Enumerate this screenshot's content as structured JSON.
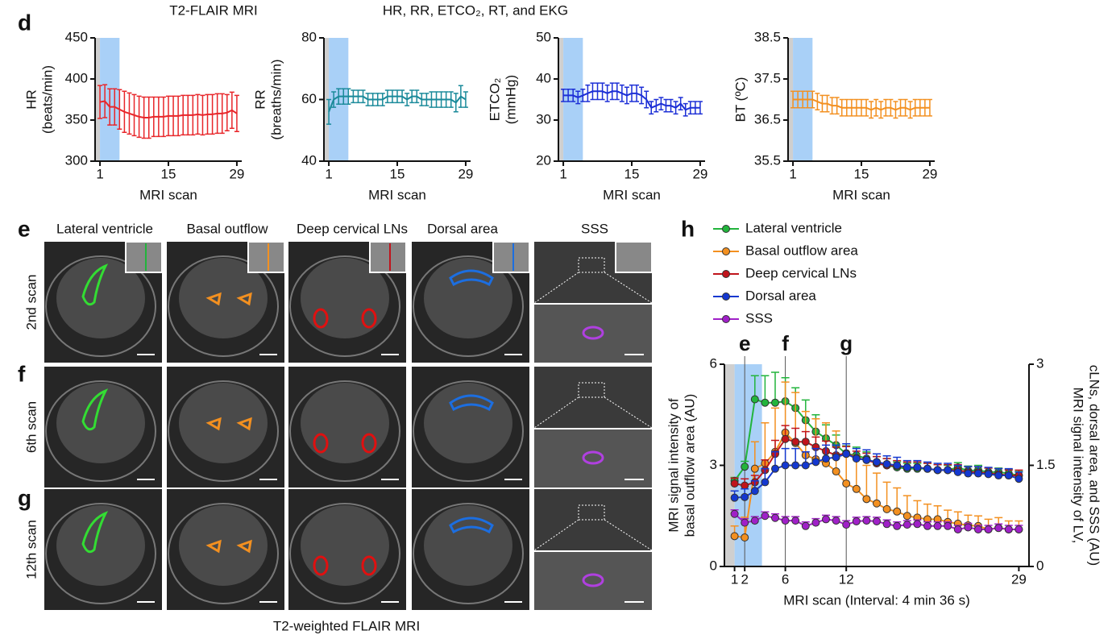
{
  "header": {
    "left": "T2-FLAIR MRI",
    "right": "HR, RR, ETCO₂, RT, and EKG"
  },
  "panel_labels": [
    "d",
    "e",
    "f",
    "g",
    "h"
  ],
  "images": {
    "columns": [
      "Lateral ventricle",
      "Basal outflow",
      "Deep cervical LNs",
      "Dorsal area",
      "SSS"
    ],
    "rows": [
      "2nd scan",
      "6th scan",
      "12th scan"
    ],
    "caption": "T2-weighted FLAIR MRI"
  },
  "chart_data": [
    {
      "type": "line",
      "ylabel": [
        "HR",
        "(beats/min)"
      ],
      "xlabel": "MRI scan",
      "xlim": [
        0,
        30
      ],
      "xticks": [
        1,
        15,
        29
      ],
      "ylim": [
        300,
        450
      ],
      "yticks": [
        300,
        350,
        400,
        450
      ],
      "error_bars": "both",
      "x": [
        1,
        2,
        3,
        4,
        5,
        6,
        7,
        8,
        9,
        10,
        11,
        12,
        13,
        14,
        15,
        16,
        17,
        18,
        19,
        20,
        21,
        22,
        23,
        24,
        25,
        26,
        27,
        28,
        29
      ],
      "series": [
        {
          "color": "#e8262a",
          "values": [
            372,
            373,
            366,
            366,
            363,
            360,
            358,
            356,
            354,
            353,
            353,
            354,
            354,
            354,
            355,
            355,
            355,
            356,
            356,
            356,
            357,
            356,
            357,
            357,
            358,
            358,
            359,
            362,
            358
          ],
          "errors": [
            20,
            20,
            22,
            22,
            24,
            25,
            25,
            25,
            25,
            25,
            25,
            24,
            24,
            24,
            24,
            24,
            24,
            24,
            24,
            24,
            24,
            24,
            24,
            24,
            24,
            24,
            22,
            22,
            22
          ]
        }
      ]
    },
    {
      "type": "line",
      "ylabel": [
        "RR",
        "(breaths/min)"
      ],
      "xlabel": "MRI scan",
      "xlim": [
        0,
        30
      ],
      "xticks": [
        1,
        15,
        29
      ],
      "ylim": [
        40,
        80
      ],
      "yticks": [
        40,
        60,
        80
      ],
      "error_bars": "both",
      "x": [
        1,
        2,
        3,
        4,
        5,
        6,
        7,
        8,
        9,
        10,
        11,
        12,
        13,
        14,
        15,
        16,
        17,
        18,
        19,
        20,
        21,
        22,
        23,
        24,
        25,
        26,
        27,
        28,
        29
      ],
      "series": [
        {
          "color": "#1a8a9a",
          "values": [
            56,
            60,
            61,
            61,
            61,
            61,
            61,
            61,
            60,
            60,
            60,
            60,
            61,
            61,
            61,
            61,
            60,
            61,
            61,
            60,
            60,
            60,
            60,
            60,
            60,
            60,
            59,
            61,
            60
          ],
          "errors": [
            4,
            2.5,
            2.5,
            2.5,
            2.5,
            2,
            2,
            2,
            2,
            2,
            2,
            2,
            2,
            2,
            2,
            2,
            2,
            2,
            2,
            2,
            2,
            2.5,
            2.5,
            2.5,
            2.5,
            2.5,
            3,
            3.5,
            2.5
          ]
        }
      ]
    },
    {
      "type": "line",
      "ylabel": [
        "ETCO₂",
        "(mmHg)"
      ],
      "xlabel": "MRI scan",
      "xlim": [
        0,
        30
      ],
      "xticks": [
        1,
        15,
        29
      ],
      "ylim": [
        20,
        50
      ],
      "yticks": [
        20,
        30,
        40,
        50
      ],
      "error_bars": "both",
      "x": [
        1,
        2,
        3,
        4,
        5,
        6,
        7,
        8,
        9,
        10,
        11,
        12,
        13,
        14,
        15,
        16,
        17,
        18,
        19,
        20,
        21,
        22,
        23,
        24,
        25,
        26,
        27,
        28,
        29
      ],
      "series": [
        {
          "color": "#1c2fd6",
          "values": [
            36,
            36,
            36,
            35.5,
            36,
            36.5,
            37,
            37,
            37,
            36.5,
            37,
            37,
            36.5,
            36,
            36.5,
            36.5,
            36,
            35,
            33,
            33.5,
            34,
            33.5,
            33.5,
            33,
            34,
            32.5,
            33,
            33,
            33
          ],
          "errors": [
            1.5,
            1.5,
            1.5,
            1.5,
            1.5,
            2,
            2,
            2,
            2,
            2,
            2,
            2,
            2,
            2,
            2,
            2,
            2,
            2,
            1.5,
            1.5,
            1.5,
            1.5,
            1.5,
            1.5,
            1.5,
            1.5,
            1.5,
            1.5,
            1.5
          ]
        }
      ]
    },
    {
      "type": "line",
      "ylabel": [
        "BT (ºC)"
      ],
      "xlabel": "MRI scan",
      "xlim": [
        0,
        30
      ],
      "xticks": [
        1,
        15,
        29
      ],
      "ylim": [
        35.5,
        38.5
      ],
      "yticks": [
        35.5,
        36.5,
        37.5,
        38.5
      ],
      "error_bars": "both",
      "x": [
        1,
        2,
        3,
        4,
        5,
        6,
        7,
        8,
        9,
        10,
        11,
        12,
        13,
        14,
        15,
        16,
        17,
        18,
        19,
        20,
        21,
        22,
        23,
        24,
        25,
        26,
        27,
        28,
        29
      ],
      "series": [
        {
          "color": "#f39020",
          "values": [
            37,
            37,
            37,
            37,
            37,
            36.95,
            36.9,
            36.9,
            36.85,
            36.85,
            36.8,
            36.8,
            36.8,
            36.8,
            36.8,
            36.8,
            36.75,
            36.8,
            36.75,
            36.8,
            36.8,
            36.75,
            36.8,
            36.8,
            36.75,
            36.8,
            36.8,
            36.8,
            36.8
          ],
          "errors": [
            0.2,
            0.2,
            0.2,
            0.2,
            0.2,
            0.2,
            0.2,
            0.2,
            0.2,
            0.2,
            0.2,
            0.2,
            0.2,
            0.2,
            0.2,
            0.2,
            0.2,
            0.2,
            0.2,
            0.2,
            0.2,
            0.2,
            0.2,
            0.2,
            0.2,
            0.2,
            0.2,
            0.2,
            0.2
          ]
        }
      ]
    },
    {
      "type": "line",
      "marker": "circle",
      "error_bars": "up",
      "ylabel": [
        "MRI signal intensity of",
        "basal outflow area (AU)"
      ],
      "y2label": [
        "MRI signal intensity of LV,",
        "cLNs, dorsal area, and SSS (AU)"
      ],
      "xlabel": "MRI scan (Interval: 4 min 36 s)",
      "xlim": [
        0,
        30
      ],
      "xticks": [
        1,
        2,
        6,
        12,
        29
      ],
      "ylim": [
        0,
        6
      ],
      "yticks": [
        0,
        3,
        6
      ],
      "y2lim": [
        0,
        3
      ],
      "y2ticks": [
        0,
        1.5,
        3
      ],
      "annotations": [
        {
          "x": 2,
          "label": "e"
        },
        {
          "x": 6,
          "label": "f"
        },
        {
          "x": 12,
          "label": "g"
        }
      ],
      "x": [
        1,
        2,
        3,
        4,
        5,
        6,
        7,
        8,
        9,
        10,
        11,
        12,
        13,
        14,
        15,
        16,
        17,
        18,
        19,
        20,
        21,
        22,
        23,
        24,
        25,
        26,
        27,
        28,
        29
      ],
      "series": [
        {
          "name": "Lateral ventricle",
          "color": "#22b43c",
          "axis": "y2",
          "values": [
            1.27,
            1.48,
            2.48,
            2.43,
            2.43,
            2.45,
            2.35,
            2.17,
            2.0,
            1.9,
            1.8,
            1.67,
            1.65,
            1.6,
            1.53,
            1.5,
            1.47,
            1.45,
            1.45,
            1.45,
            1.43,
            1.43,
            1.47,
            1.42,
            1.43,
            1.4,
            1.4,
            1.38,
            1.35
          ],
          "errors": [
            0.05,
            0.08,
            0.35,
            0.4,
            0.45,
            0.35,
            0.3,
            0.3,
            0.25,
            0.2,
            0.15,
            0.12,
            0.12,
            0.1,
            0.1,
            0.1,
            0.08,
            0.08,
            0.08,
            0.08,
            0.08,
            0.07,
            0.07,
            0.07,
            0.07,
            0.06,
            0.06,
            0.06,
            0.06
          ]
        },
        {
          "name": "Basal outflow area",
          "color": "#f39020",
          "values": [
            0.9,
            0.86,
            2.9,
            3.06,
            3.4,
            3.97,
            3.66,
            3.3,
            3.18,
            3.06,
            2.82,
            2.46,
            2.3,
            2.0,
            1.87,
            1.7,
            1.63,
            1.5,
            1.45,
            1.4,
            1.4,
            1.32,
            1.27,
            1.22,
            1.2,
            1.1,
            1.15,
            1.1,
            1.1
          ],
          "errors": [
            0.3,
            0.6,
            0.8,
            1.2,
            1.3,
            1.5,
            1.5,
            1.3,
            1.2,
            1.2,
            1.2,
            1.1,
            1.0,
            1.0,
            0.9,
            0.8,
            0.7,
            0.6,
            0.5,
            0.45,
            0.4,
            0.35,
            0.35,
            0.3,
            0.3,
            0.3,
            0.3,
            0.25,
            0.25
          ]
        },
        {
          "name": "Deep cervical LNs",
          "color": "#c0141c",
          "axis": "y2",
          "values": [
            1.23,
            1.2,
            1.25,
            1.43,
            1.67,
            1.89,
            1.85,
            1.85,
            1.77,
            1.71,
            1.65,
            1.68,
            1.61,
            1.58,
            1.53,
            1.5,
            1.49,
            1.47,
            1.47,
            1.45,
            1.43,
            1.43,
            1.43,
            1.4,
            1.4,
            1.38,
            1.37,
            1.35,
            1.35
          ],
          "errors": [
            0.08,
            0.1,
            0.1,
            0.15,
            0.2,
            0.2,
            0.2,
            0.15,
            0.15,
            0.15,
            0.12,
            0.1,
            0.1,
            0.1,
            0.1,
            0.1,
            0.08,
            0.08,
            0.08,
            0.08,
            0.08,
            0.08,
            0.08,
            0.08,
            0.08,
            0.08,
            0.08,
            0.08,
            0.08
          ]
        },
        {
          "name": "Dorsal area",
          "color": "#1438d0",
          "axis": "y2",
          "values": [
            1.02,
            1.03,
            1.12,
            1.25,
            1.45,
            1.5,
            1.5,
            1.5,
            1.55,
            1.6,
            1.62,
            1.67,
            1.6,
            1.58,
            1.55,
            1.52,
            1.5,
            1.47,
            1.47,
            1.45,
            1.43,
            1.43,
            1.4,
            1.38,
            1.38,
            1.37,
            1.35,
            1.35,
            1.3
          ],
          "errors": [
            0.1,
            0.12,
            0.15,
            0.2,
            0.25,
            0.25,
            0.25,
            0.2,
            0.2,
            0.2,
            0.18,
            0.15,
            0.15,
            0.15,
            0.12,
            0.12,
            0.12,
            0.1,
            0.1,
            0.1,
            0.1,
            0.1,
            0.1,
            0.1,
            0.1,
            0.1,
            0.1,
            0.1,
            0.1
          ]
        },
        {
          "name": "SSS",
          "color": "#a020c8",
          "axis": "y2",
          "values": [
            0.78,
            0.65,
            0.68,
            0.75,
            0.72,
            0.68,
            0.68,
            0.6,
            0.65,
            0.7,
            0.68,
            0.62,
            0.67,
            0.68,
            0.67,
            0.63,
            0.6,
            0.62,
            0.63,
            0.6,
            0.6,
            0.6,
            0.55,
            0.58,
            0.55,
            0.55,
            0.57,
            0.55,
            0.55
          ],
          "errors": [
            0.06,
            0.06,
            0.06,
            0.06,
            0.06,
            0.06,
            0.06,
            0.06,
            0.06,
            0.06,
            0.06,
            0.06,
            0.06,
            0.06,
            0.06,
            0.06,
            0.06,
            0.06,
            0.06,
            0.06,
            0.06,
            0.06,
            0.06,
            0.06,
            0.06,
            0.06,
            0.06,
            0.06,
            0.06
          ]
        }
      ]
    }
  ]
}
